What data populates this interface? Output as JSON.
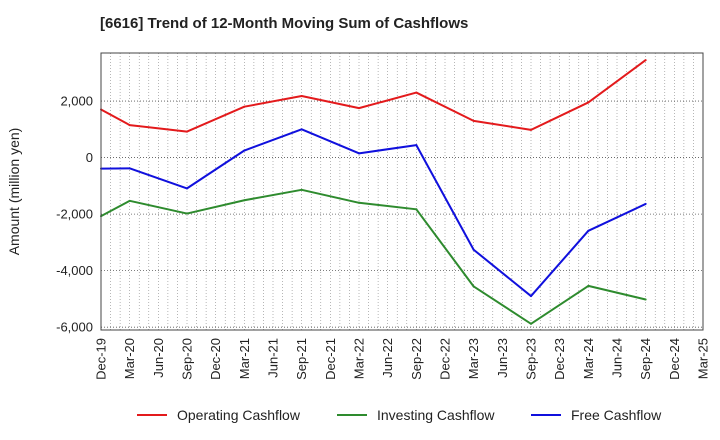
{
  "chart_data": {
    "type": "line",
    "title": "[6616]  Trend of 12-Month Moving Sum of Cashflows",
    "xlabel": "",
    "ylabel": "Amount (million yen)",
    "ylim": [
      -6100,
      3700
    ],
    "yticks": [
      2000,
      0,
      -2000,
      -4000,
      -6000
    ],
    "ytick_labels": [
      "2,000",
      "0",
      "-2,000",
      "-4,000",
      "-6,000"
    ],
    "x_labels": [
      "Dec-19",
      "Mar-20",
      "Jun-20",
      "Sep-20",
      "Dec-20",
      "Mar-21",
      "Jun-21",
      "Sep-21",
      "Dec-21",
      "Mar-22",
      "Jun-22",
      "Sep-22",
      "Dec-22",
      "Mar-23",
      "Jun-23",
      "Sep-23",
      "Dec-23",
      "Mar-24",
      "Jun-24",
      "Sep-24",
      "Dec-24",
      "Mar-25"
    ],
    "x_dates": [
      "Dec-19",
      "Mar-20",
      "Sep-20",
      "Mar-21",
      "Sep-21",
      "Mar-22",
      "Sep-22",
      "Mar-23",
      "Sep-23",
      "Mar-24",
      "Sep-24"
    ],
    "grid": true,
    "legend_position": "bottom",
    "series": [
      {
        "name": "Operating Cashflow",
        "color": "#e31a1c",
        "values": [
          1700,
          1150,
          920,
          1800,
          2180,
          1750,
          2300,
          1300,
          980,
          1950,
          3450
        ]
      },
      {
        "name": "Investing Cashflow",
        "color": "#2e8b2e",
        "values": [
          -2070,
          -1530,
          -1980,
          -1510,
          -1140,
          -1600,
          -1830,
          -4560,
          -5880,
          -4540,
          -5020
        ]
      },
      {
        "name": "Free Cashflow",
        "color": "#1010dd",
        "values": [
          -390,
          -380,
          -1090,
          250,
          1000,
          150,
          440,
          -3260,
          -4900,
          -2590,
          -1640
        ]
      }
    ]
  }
}
